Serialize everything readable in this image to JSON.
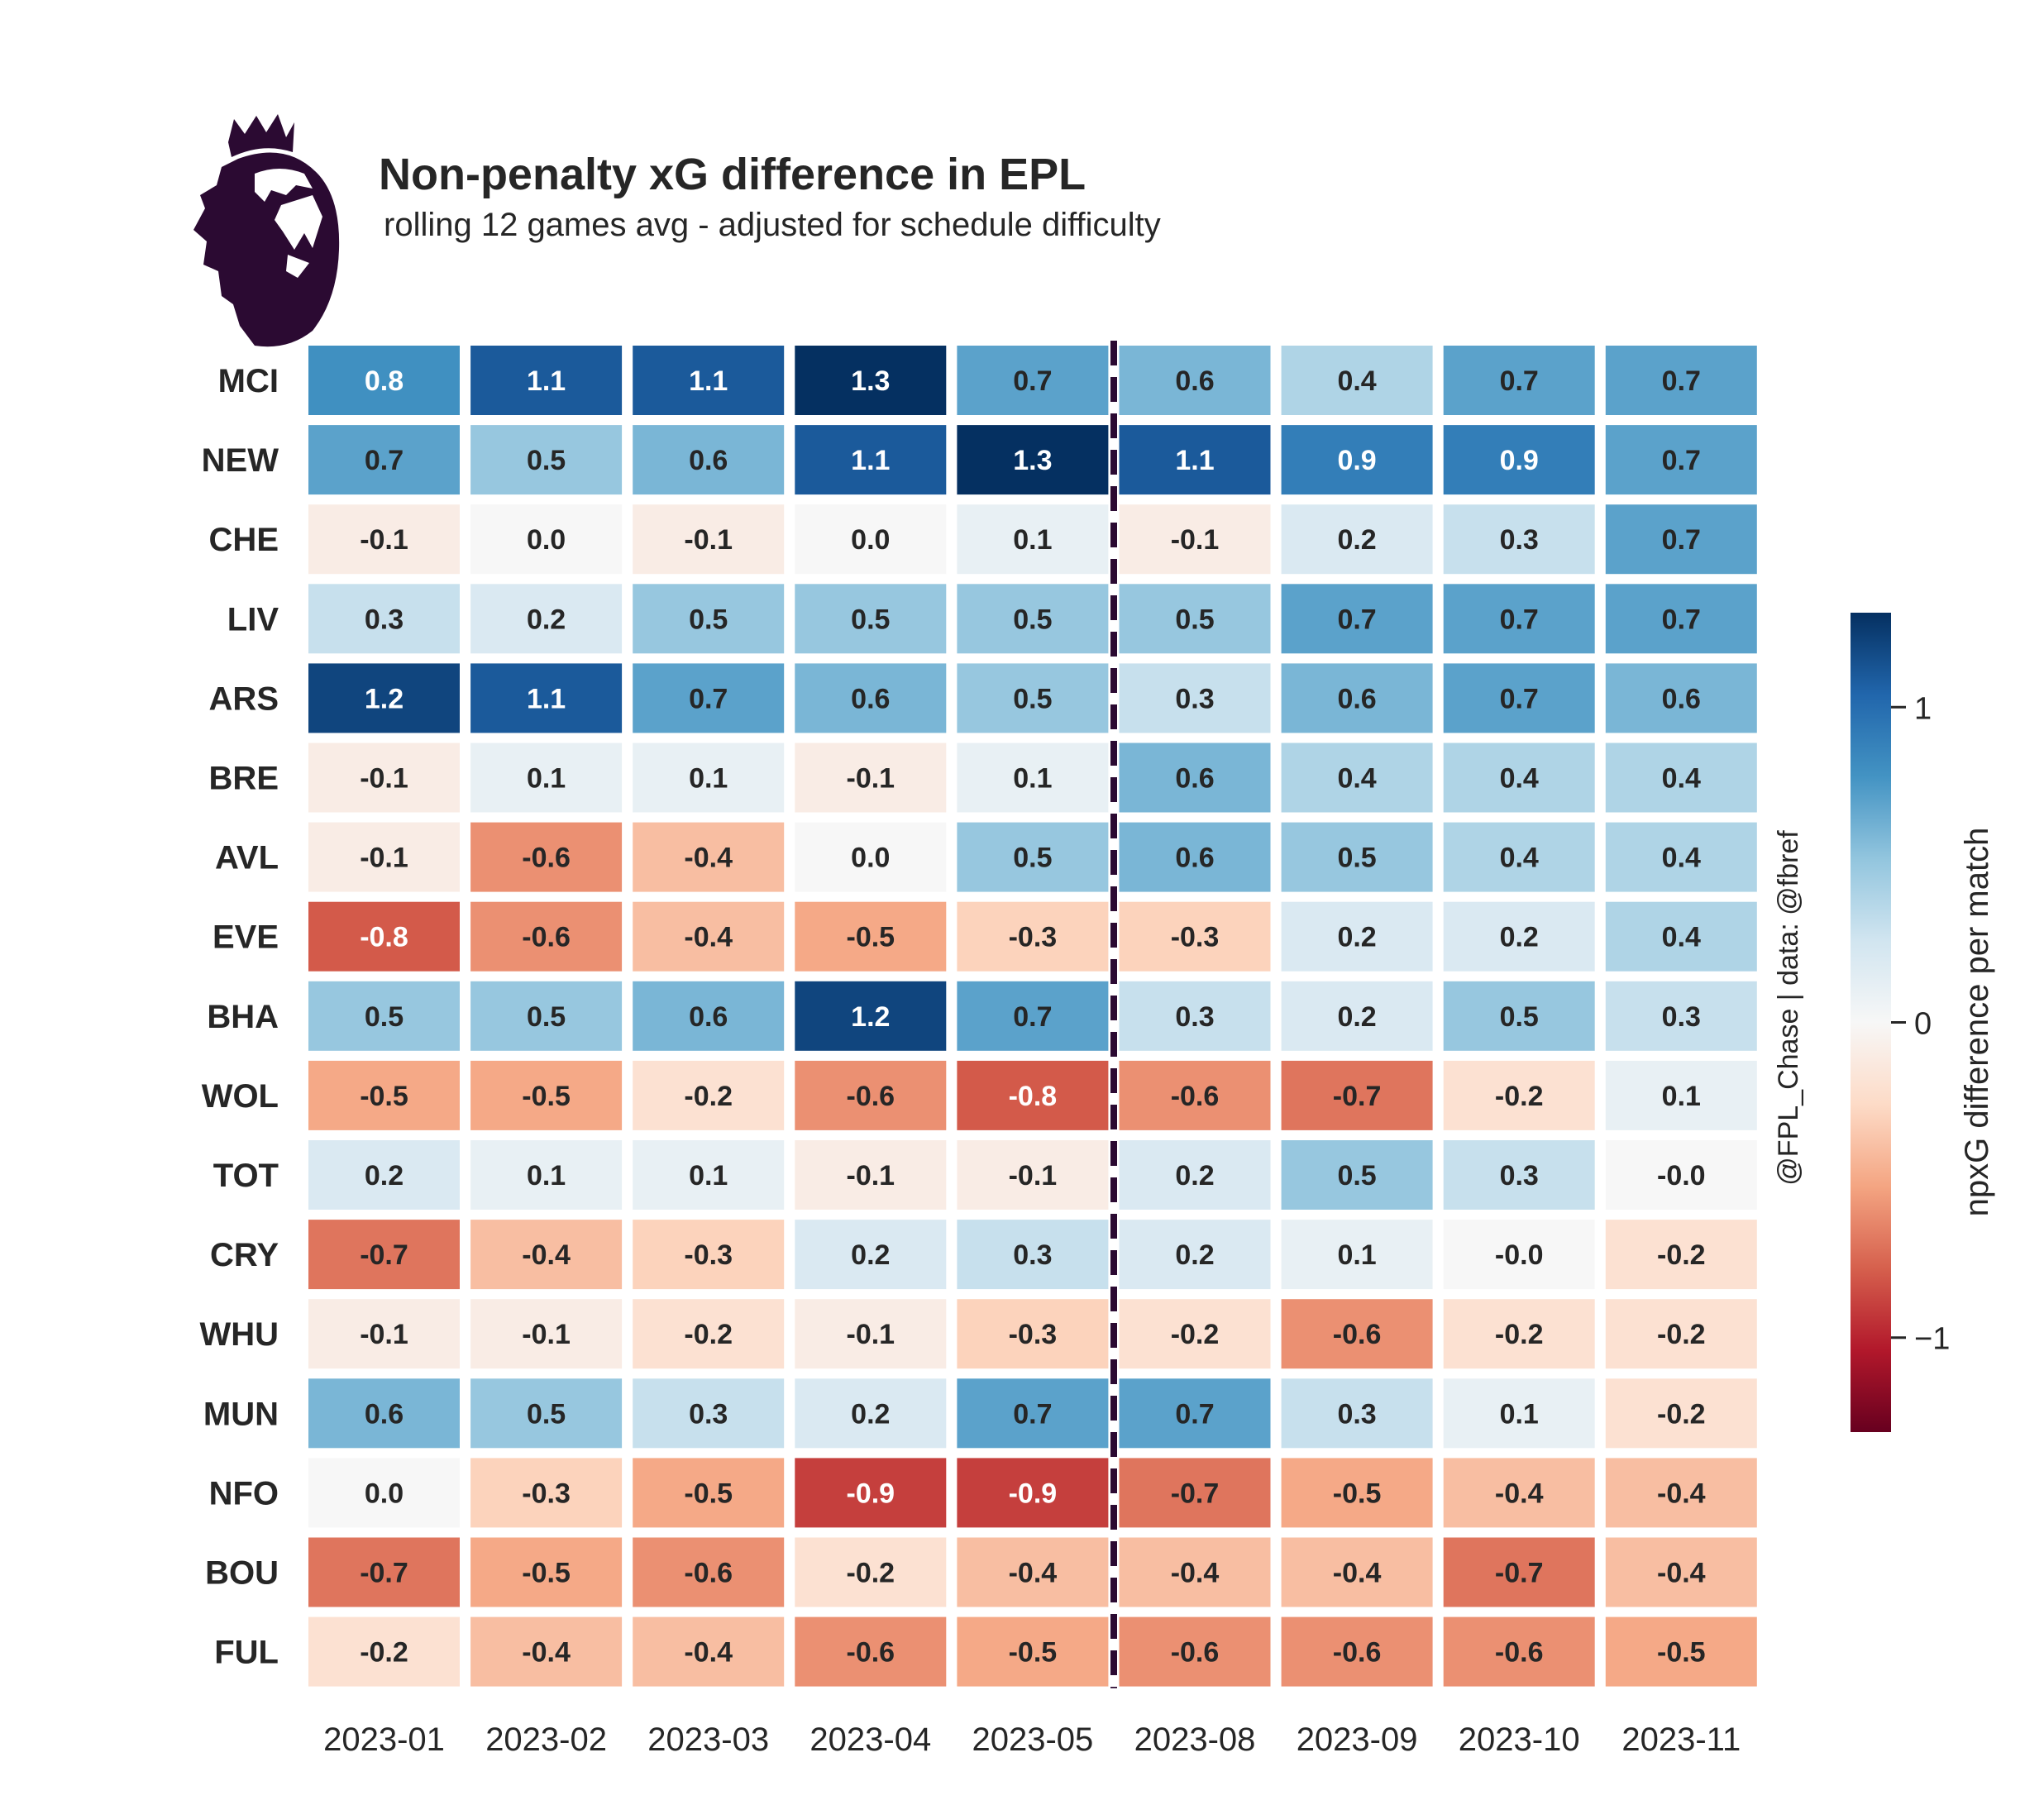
{
  "header": {
    "title": "Non-penalty xG difference in EPL",
    "subtitle": "rolling 12 games avg - adjusted for schedule difficulty",
    "logo": "premier-league-lion-logo"
  },
  "credit": "@FPL_Chase | data: @fbref",
  "colors": {
    "logo": "#2b0a32",
    "text": "#262626",
    "divider": "#2b0a32",
    "text_light": "#ffffff",
    "text_dark": "#262626"
  },
  "chart_data": {
    "type": "heatmap",
    "title": "Non-penalty xG difference in EPL",
    "subtitle": "rolling 12 games avg - adjusted for schedule difficulty",
    "xlabel": "",
    "ylabel": "",
    "colormap": "RdBu",
    "vmin": -1.3,
    "vmax": 1.3,
    "divider_after_column": "2023-05",
    "x": [
      "2023-01",
      "2023-02",
      "2023-03",
      "2023-04",
      "2023-05",
      "2023-08",
      "2023-09",
      "2023-10",
      "2023-11"
    ],
    "y": [
      "MCI",
      "NEW",
      "CHE",
      "LIV",
      "ARS",
      "BRE",
      "AVL",
      "EVE",
      "BHA",
      "WOL",
      "TOT",
      "CRY",
      "WHU",
      "MUN",
      "NFO",
      "BOU",
      "FUL"
    ],
    "values": [
      [
        0.8,
        1.1,
        1.1,
        1.3,
        0.7,
        0.6,
        0.4,
        0.7,
        0.7
      ],
      [
        0.7,
        0.5,
        0.6,
        1.1,
        1.3,
        1.1,
        0.9,
        0.9,
        0.7
      ],
      [
        -0.1,
        0.0,
        -0.1,
        0.0,
        0.1,
        -0.1,
        0.2,
        0.3,
        0.7
      ],
      [
        0.3,
        0.2,
        0.5,
        0.5,
        0.5,
        0.5,
        0.7,
        0.7,
        0.7
      ],
      [
        1.2,
        1.1,
        0.7,
        0.6,
        0.5,
        0.3,
        0.6,
        0.7,
        0.6
      ],
      [
        -0.1,
        0.1,
        0.1,
        -0.1,
        0.1,
        0.6,
        0.4,
        0.4,
        0.4
      ],
      [
        -0.1,
        -0.6,
        -0.4,
        0.0,
        0.5,
        0.6,
        0.5,
        0.4,
        0.4
      ],
      [
        -0.8,
        -0.6,
        -0.4,
        -0.5,
        -0.3,
        -0.3,
        0.2,
        0.2,
        0.4
      ],
      [
        0.5,
        0.5,
        0.6,
        1.2,
        0.7,
        0.3,
        0.2,
        0.5,
        0.3
      ],
      [
        -0.5,
        -0.5,
        -0.2,
        -0.6,
        -0.8,
        -0.6,
        -0.7,
        -0.2,
        0.1
      ],
      [
        0.2,
        0.1,
        0.1,
        -0.1,
        -0.1,
        0.2,
        0.5,
        0.3,
        -0.0
      ],
      [
        -0.7,
        -0.4,
        -0.3,
        0.2,
        0.3,
        0.2,
        0.1,
        -0.0,
        -0.2
      ],
      [
        -0.1,
        -0.1,
        -0.2,
        -0.1,
        -0.3,
        -0.2,
        -0.6,
        -0.2,
        -0.2
      ],
      [
        0.6,
        0.5,
        0.3,
        0.2,
        0.7,
        0.7,
        0.3,
        0.1,
        -0.2
      ],
      [
        0.0,
        -0.3,
        -0.5,
        -0.9,
        -0.9,
        -0.7,
        -0.5,
        -0.4,
        -0.4
      ],
      [
        -0.7,
        -0.5,
        -0.6,
        -0.2,
        -0.4,
        -0.4,
        -0.4,
        -0.7,
        -0.4
      ],
      [
        -0.2,
        -0.4,
        -0.4,
        -0.6,
        -0.5,
        -0.6,
        -0.6,
        -0.6,
        -0.5
      ]
    ],
    "labels": [
      [
        "0.8",
        "1.1",
        "1.1",
        "1.3",
        "0.7",
        "0.6",
        "0.4",
        "0.7",
        "0.7"
      ],
      [
        "0.7",
        "0.5",
        "0.6",
        "1.1",
        "1.3",
        "1.1",
        "0.9",
        "0.9",
        "0.7"
      ],
      [
        "-0.1",
        "0.0",
        "-0.1",
        "0.0",
        "0.1",
        "-0.1",
        "0.2",
        "0.3",
        "0.7"
      ],
      [
        "0.3",
        "0.2",
        "0.5",
        "0.5",
        "0.5",
        "0.5",
        "0.7",
        "0.7",
        "0.7"
      ],
      [
        "1.2",
        "1.1",
        "0.7",
        "0.6",
        "0.5",
        "0.3",
        "0.6",
        "0.7",
        "0.6"
      ],
      [
        "-0.1",
        "0.1",
        "0.1",
        "-0.1",
        "0.1",
        "0.6",
        "0.4",
        "0.4",
        "0.4"
      ],
      [
        "-0.1",
        "-0.6",
        "-0.4",
        "0.0",
        "0.5",
        "0.6",
        "0.5",
        "0.4",
        "0.4"
      ],
      [
        "-0.8",
        "-0.6",
        "-0.4",
        "-0.5",
        "-0.3",
        "-0.3",
        "0.2",
        "0.2",
        "0.4"
      ],
      [
        "0.5",
        "0.5",
        "0.6",
        "1.2",
        "0.7",
        "0.3",
        "0.2",
        "0.5",
        "0.3"
      ],
      [
        "-0.5",
        "-0.5",
        "-0.2",
        "-0.6",
        "-0.8",
        "-0.6",
        "-0.7",
        "-0.2",
        "0.1"
      ],
      [
        "0.2",
        "0.1",
        "0.1",
        "-0.1",
        "-0.1",
        "0.2",
        "0.5",
        "0.3",
        "-0.0"
      ],
      [
        "-0.7",
        "-0.4",
        "-0.3",
        "0.2",
        "0.3",
        "0.2",
        "0.1",
        "-0.0",
        "-0.2"
      ],
      [
        "-0.1",
        "-0.1",
        "-0.2",
        "-0.1",
        "-0.3",
        "-0.2",
        "-0.6",
        "-0.2",
        "-0.2"
      ],
      [
        "0.6",
        "0.5",
        "0.3",
        "0.2",
        "0.7",
        "0.7",
        "0.3",
        "0.1",
        "-0.2"
      ],
      [
        "0.0",
        "-0.3",
        "-0.5",
        "-0.9",
        "-0.9",
        "-0.7",
        "-0.5",
        "-0.4",
        "-0.4"
      ],
      [
        "-0.7",
        "-0.5",
        "-0.6",
        "-0.2",
        "-0.4",
        "-0.4",
        "-0.4",
        "-0.7",
        "-0.4"
      ],
      [
        "-0.2",
        "-0.4",
        "-0.4",
        "-0.6",
        "-0.5",
        "-0.6",
        "-0.6",
        "-0.6",
        "-0.5"
      ]
    ],
    "colorbar": {
      "label": "npxG difference per match",
      "ticks": [
        1,
        0,
        -1
      ],
      "tick_labels": [
        "1",
        "0",
        "−1"
      ],
      "range": [
        -1.3,
        1.3
      ],
      "placement": "right"
    },
    "legend": "none",
    "grid": false
  }
}
